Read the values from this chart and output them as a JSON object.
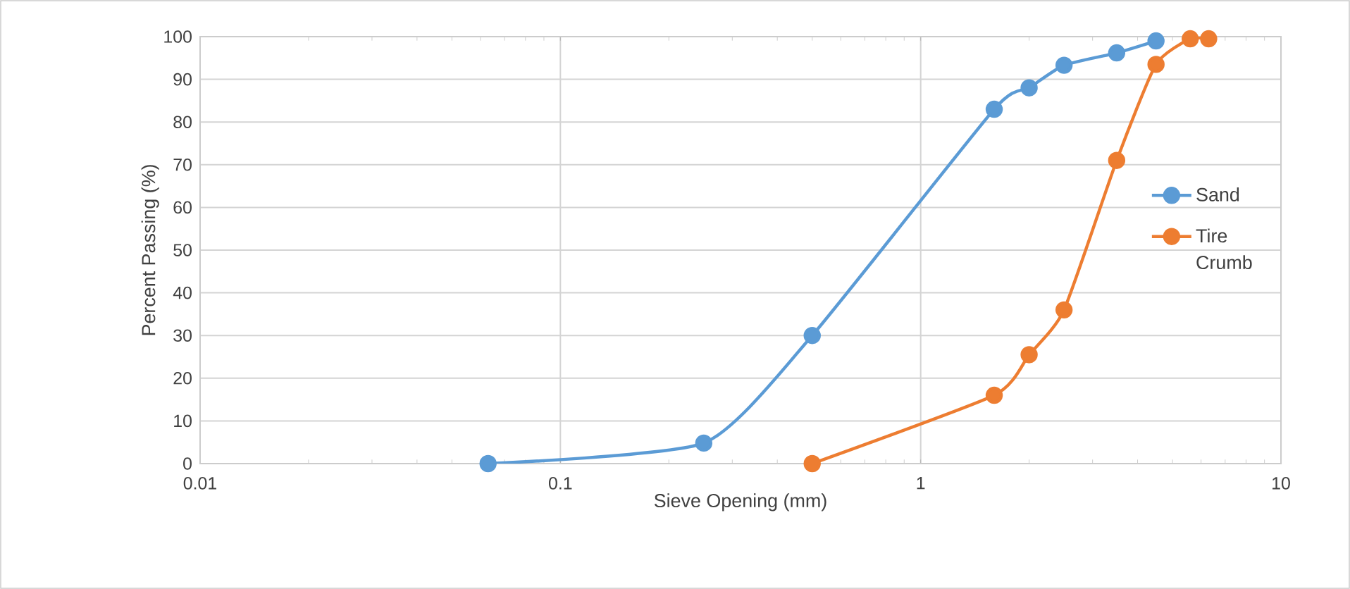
{
  "chart_data": {
    "type": "line",
    "xlabel": "Sieve Opening (mm)",
    "ylabel": "Percent Passing (%)",
    "log": "x",
    "grid": true,
    "legend": "right",
    "marker": "circle",
    "line_style": "solid",
    "xlim": [
      0.01,
      10
    ],
    "xticks": [
      0.01,
      0.1,
      1,
      10
    ],
    "ylim": [
      0,
      100
    ],
    "yticks": [
      0,
      10,
      20,
      30,
      40,
      50,
      60,
      70,
      80,
      90,
      100
    ],
    "series": [
      {
        "name": "Sand",
        "color": "#5b9bd5",
        "x": [
          0.063,
          0.25,
          0.5,
          1.6,
          2,
          2.5,
          3.5,
          4.5
        ],
        "values": [
          0,
          4.8,
          30,
          83,
          88,
          93.3,
          96.2,
          99
        ]
      },
      {
        "name": "Tire Crumb",
        "color": "#ed7d31",
        "x": [
          0.5,
          1.6,
          2,
          2.5,
          3.5,
          4.5,
          5.6,
          6.3
        ],
        "values": [
          0,
          16,
          25.5,
          36,
          71,
          93.5,
          99.5,
          99.5
        ]
      }
    ]
  }
}
